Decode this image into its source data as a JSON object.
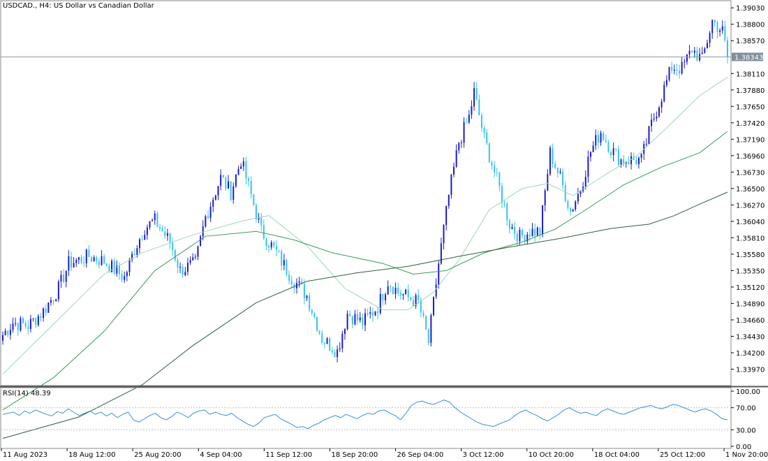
{
  "title": "USDCAD., H4:  US Dollar vs Canadian Dollar",
  "current_price": "1.38343",
  "colors": {
    "bull": "#1a1acc",
    "bear": "#33c4ee",
    "ma_fast": "#9ad9b3",
    "ma_mid": "#3a9a5a",
    "ma_slow": "#2f5f3f",
    "rsi": "#3c8fd8",
    "grid": "#bbbbbb",
    "price_line": "#8a9aaa"
  },
  "chart_data": [
    {
      "type": "candlestick",
      "ylim": [
        1.3374,
        1.3913
      ],
      "y_ticks": [
        "1.39030",
        "1.38800",
        "1.38570",
        "1.38110",
        "1.37880",
        "1.37650",
        "1.37420",
        "1.37190",
        "1.36960",
        "1.36730",
        "1.36500",
        "1.36270",
        "1.36040",
        "1.35810",
        "1.35580",
        "1.35350",
        "1.35120",
        "1.34890",
        "1.34660",
        "1.34430",
        "1.34200",
        "1.33970"
      ],
      "x_ticks": [
        "11 Aug 2023",
        "18 Aug 12:00",
        "25 Aug 20:00",
        "4 Sep 04:00",
        "11 Sep 12:00",
        "18 Sep 20:00",
        "26 Sep 04:00",
        "3 Oct 12:00",
        "10 Oct 20:00",
        "18 Oct 04:00",
        "25 Oct 12:00",
        "1 Nov 20:00"
      ],
      "anchors": [
        [
          0,
          1.3445
        ],
        [
          4,
          1.3462
        ],
        [
          10,
          1.3458
        ],
        [
          16,
          1.3478
        ],
        [
          22,
          1.351
        ],
        [
          26,
          1.3545
        ],
        [
          34,
          1.3555
        ],
        [
          40,
          1.3548
        ],
        [
          48,
          1.3525
        ],
        [
          52,
          1.3565
        ],
        [
          56,
          1.3595
        ],
        [
          60,
          1.3605
        ],
        [
          66,
          1.3575
        ],
        [
          70,
          1.3535
        ],
        [
          76,
          1.3545
        ],
        [
          80,
          1.361
        ],
        [
          86,
          1.3665
        ],
        [
          90,
          1.3645
        ],
        [
          94,
          1.369
        ],
        [
          98,
          1.364
        ],
        [
          102,
          1.359
        ],
        [
          108,
          1.356
        ],
        [
          114,
          1.3525
        ],
        [
          120,
          1.35
        ],
        [
          126,
          1.344
        ],
        [
          132,
          1.3422
        ],
        [
          136,
          1.3475
        ],
        [
          142,
          1.3462
        ],
        [
          148,
          1.3485
        ],
        [
          152,
          1.352
        ],
        [
          156,
          1.3505
        ],
        [
          164,
          1.349
        ],
        [
          168,
          1.3435
        ],
        [
          172,
          1.3545
        ],
        [
          176,
          1.364
        ],
        [
          180,
          1.3715
        ],
        [
          184,
          1.375
        ],
        [
          186,
          1.3785
        ],
        [
          190,
          1.372
        ],
        [
          196,
          1.365
        ],
        [
          200,
          1.36
        ],
        [
          204,
          1.3582
        ],
        [
          208,
          1.359
        ],
        [
          212,
          1.359
        ],
        [
          216,
          1.37
        ],
        [
          220,
          1.3665
        ],
        [
          224,
          1.3618
        ],
        [
          228,
          1.365
        ],
        [
          232,
          1.3702
        ],
        [
          236,
          1.373
        ],
        [
          240,
          1.3705
        ],
        [
          244,
          1.369
        ],
        [
          248,
          1.369
        ],
        [
          252,
          1.369
        ],
        [
          256,
          1.374
        ],
        [
          260,
          1.378
        ],
        [
          264,
          1.382
        ],
        [
          268,
          1.3818
        ],
        [
          272,
          1.3845
        ],
        [
          276,
          1.383
        ],
        [
          280,
          1.3885
        ],
        [
          284,
          1.387
        ],
        [
          286,
          1.3834
        ]
      ],
      "ma_fast_points": [
        [
          0,
          1.339
        ],
        [
          20,
          1.346
        ],
        [
          40,
          1.353
        ],
        [
          55,
          1.356
        ],
        [
          75,
          1.3585
        ],
        [
          95,
          1.3605
        ],
        [
          105,
          1.3612
        ],
        [
          120,
          1.357
        ],
        [
          135,
          1.351
        ],
        [
          150,
          1.348
        ],
        [
          160,
          1.348
        ],
        [
          170,
          1.3505
        ],
        [
          180,
          1.355
        ],
        [
          192,
          1.362
        ],
        [
          205,
          1.365
        ],
        [
          215,
          1.3657
        ],
        [
          225,
          1.364
        ],
        [
          238,
          1.367
        ],
        [
          250,
          1.3695
        ],
        [
          262,
          1.3735
        ],
        [
          275,
          1.378
        ],
        [
          286,
          1.3806
        ]
      ],
      "ma_mid_points": [
        [
          0,
          1.334
        ],
        [
          20,
          1.3385
        ],
        [
          40,
          1.345
        ],
        [
          60,
          1.3535
        ],
        [
          80,
          1.3583
        ],
        [
          100,
          1.359
        ],
        [
          115,
          1.3578
        ],
        [
          130,
          1.356
        ],
        [
          150,
          1.3545
        ],
        [
          162,
          1.353
        ],
        [
          175,
          1.3535
        ],
        [
          190,
          1.356
        ],
        [
          205,
          1.3575
        ],
        [
          218,
          1.3593
        ],
        [
          230,
          1.362
        ],
        [
          245,
          1.3655
        ],
        [
          260,
          1.368
        ],
        [
          275,
          1.37
        ],
        [
          286,
          1.373
        ]
      ],
      "ma_slow_points": [
        [
          0,
          1.33
        ],
        [
          30,
          1.333
        ],
        [
          55,
          1.3375
        ],
        [
          75,
          1.343
        ],
        [
          100,
          1.349
        ],
        [
          120,
          1.352
        ],
        [
          140,
          1.3532
        ],
        [
          160,
          1.3541
        ],
        [
          180,
          1.3555
        ],
        [
          200,
          1.3568
        ],
        [
          220,
          1.358
        ],
        [
          240,
          1.3594
        ],
        [
          255,
          1.36
        ],
        [
          265,
          1.3612
        ],
        [
          275,
          1.3628
        ],
        [
          286,
          1.3645
        ]
      ]
    },
    {
      "type": "line",
      "title": "RSI(14) 48.39",
      "ylim": [
        0,
        100
      ],
      "y_ticks": [
        "100.00",
        "70.00",
        "30.00",
        "0.00"
      ],
      "levels": [
        70,
        30
      ],
      "series": [
        {
          "values": [
            58,
            60,
            62,
            56,
            64,
            60,
            66,
            62,
            58,
            55,
            63,
            60,
            68,
            62,
            56,
            60,
            64,
            58,
            62,
            55,
            60,
            52,
            58,
            62,
            48,
            44,
            50,
            56,
            60,
            52,
            48,
            54,
            62,
            58,
            52,
            60,
            64,
            66,
            58,
            62,
            58,
            56,
            60,
            52,
            46,
            40,
            36,
            42,
            52,
            55,
            58,
            50,
            45,
            40,
            34,
            36,
            32,
            38,
            42,
            48,
            52,
            56,
            52,
            58,
            54,
            50,
            56,
            60,
            58,
            64,
            66,
            60,
            56,
            48,
            60,
            74,
            80,
            82,
            78,
            76,
            80,
            84,
            80,
            70,
            62,
            56,
            50,
            44,
            40,
            38,
            36,
            40,
            44,
            48,
            56,
            62,
            66,
            60,
            56,
            50,
            46,
            52,
            58,
            66,
            70,
            64,
            60,
            62,
            58,
            56,
            64,
            68,
            64,
            60,
            58,
            62,
            66,
            70,
            72,
            74,
            70,
            68,
            72,
            76,
            74,
            70,
            66,
            62,
            66,
            68,
            64,
            58,
            50,
            48
          ]
        }
      ]
    }
  ]
}
